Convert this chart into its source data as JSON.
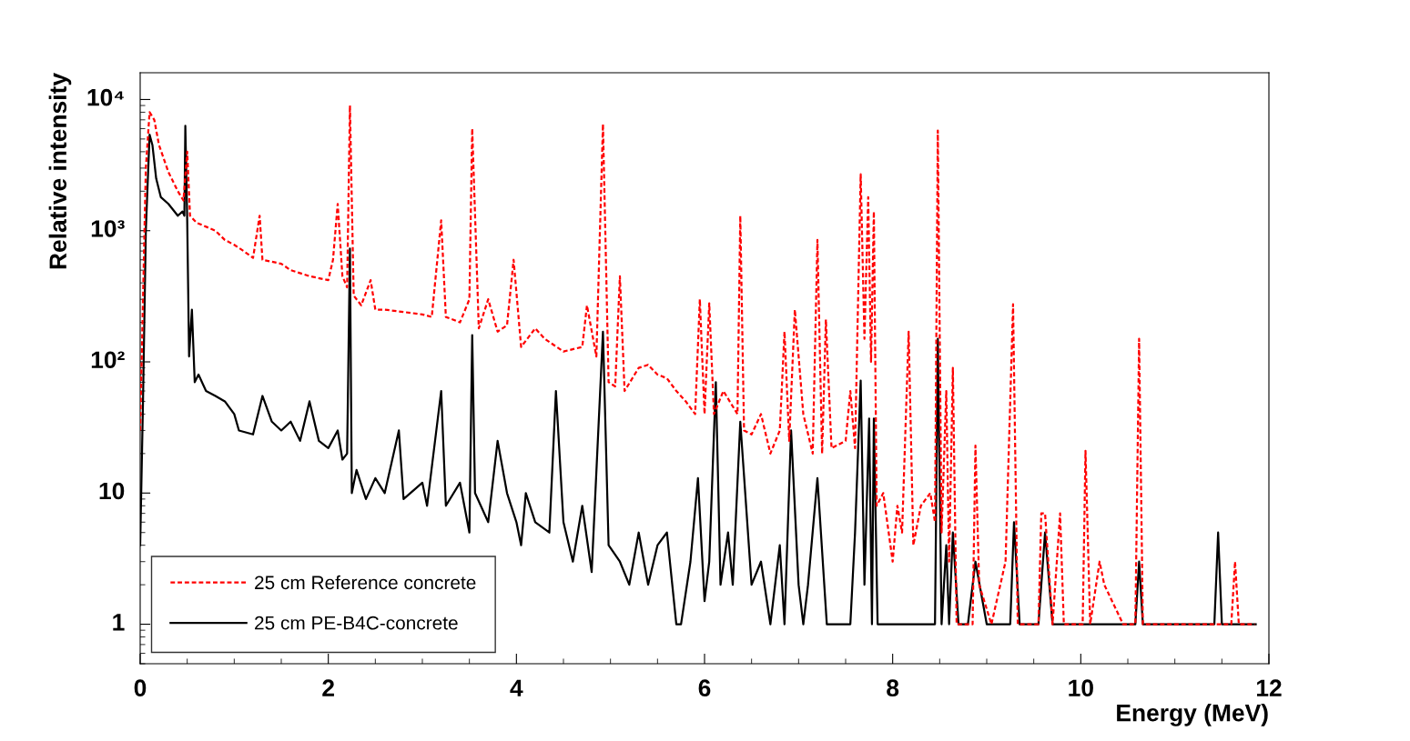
{
  "chart_data": {
    "type": "line",
    "xlabel": "Energy (MeV)",
    "ylabel": "Relative intensity",
    "xlim": [
      0,
      12
    ],
    "xticks": [
      0,
      2,
      4,
      6,
      8,
      10,
      12
    ],
    "ylim": [
      0.5,
      16000
    ],
    "yticks": [
      1,
      10,
      {
        "value": 100,
        "label": "10²"
      },
      {
        "value": 1000,
        "label": "10³"
      },
      {
        "value": 10000,
        "label": "10⁴"
      }
    ],
    "log": "y",
    "legend": "bottom left",
    "series": [
      {
        "name": "25 cm Reference concrete",
        "color": "#ff0000",
        "line_style": "dashed",
        "x": [
          0,
          0.03,
          0.06,
          0.1,
          0.15,
          0.2,
          0.3,
          0.4,
          0.46,
          0.5,
          0.53,
          0.6,
          0.8,
          0.9,
          1.0,
          1.1,
          1.2,
          1.27,
          1.3,
          1.5,
          1.6,
          1.8,
          2.0,
          2.05,
          2.1,
          2.15,
          2.2,
          2.23,
          2.27,
          2.35,
          2.45,
          2.5,
          2.6,
          2.8,
          3.0,
          3.1,
          3.2,
          3.25,
          3.4,
          3.5,
          3.53,
          3.6,
          3.7,
          3.8,
          3.9,
          3.97,
          4.05,
          4.2,
          4.3,
          4.5,
          4.7,
          4.75,
          4.85,
          4.92,
          4.98,
          5.05,
          5.1,
          5.15,
          5.3,
          5.4,
          5.5,
          5.6,
          5.7,
          5.8,
          5.9,
          5.95,
          6.0,
          6.05,
          6.1,
          6.2,
          6.35,
          6.38,
          6.42,
          6.5,
          6.6,
          6.7,
          6.8,
          6.85,
          6.9,
          6.96,
          7.05,
          7.15,
          7.2,
          7.25,
          7.29,
          7.35,
          7.5,
          7.55,
          7.6,
          7.66,
          7.7,
          7.74,
          7.77,
          7.8,
          7.83,
          7.9,
          8.0,
          8.05,
          8.1,
          8.17,
          8.22,
          8.3,
          8.4,
          8.45,
          8.48,
          8.52,
          8.57,
          8.6,
          8.64,
          8.68,
          8.85,
          8.88,
          8.92,
          9.05,
          9.2,
          9.28,
          9.33,
          9.55,
          9.58,
          9.62,
          9.7,
          9.78,
          9.82,
          10.02,
          10.05,
          10.1,
          10.2,
          10.25,
          10.45,
          10.58,
          10.62,
          10.66,
          10.9,
          11.6,
          11.64,
          11.68,
          11.85
        ],
        "values": [
          30,
          300,
          3000,
          8000,
          7000,
          4500,
          2800,
          2000,
          1700,
          4000,
          1300,
          1150,
          1000,
          850,
          780,
          700,
          620,
          1300,
          600,
          560,
          500,
          450,
          420,
          600,
          1600,
          450,
          370,
          9000,
          320,
          270,
          420,
          250,
          250,
          240,
          230,
          220,
          1200,
          220,
          200,
          300,
          6000,
          180,
          300,
          170,
          190,
          600,
          130,
          180,
          150,
          120,
          130,
          270,
          110,
          6500,
          70,
          65,
          450,
          60,
          90,
          95,
          80,
          75,
          60,
          50,
          40,
          300,
          40,
          280,
          40,
          60,
          40,
          1300,
          30,
          28,
          40,
          20,
          30,
          170,
          25,
          250,
          40,
          20,
          850,
          20,
          210,
          22,
          25,
          60,
          22,
          2700,
          150,
          1800,
          100,
          1400,
          8,
          10,
          3,
          8,
          5,
          170,
          4,
          8,
          10,
          6,
          5800,
          5,
          60,
          3,
          90,
          1,
          1,
          23,
          2,
          1,
          3,
          275,
          1,
          1,
          7,
          7,
          1,
          7,
          1,
          1,
          21,
          1,
          3,
          2,
          1,
          1,
          150,
          1,
          1,
          1,
          3,
          1,
          1
        ]
      },
      {
        "name": "25 cm PE-B4C-concrete",
        "color": "#000000",
        "line_style": "solid",
        "x": [
          0,
          0.03,
          0.06,
          0.1,
          0.13,
          0.17,
          0.22,
          0.3,
          0.4,
          0.45,
          0.47,
          0.48,
          0.5,
          0.52,
          0.55,
          0.58,
          0.62,
          0.7,
          0.8,
          0.9,
          1.0,
          1.05,
          1.2,
          1.3,
          1.4,
          1.5,
          1.6,
          1.7,
          1.8,
          1.9,
          2.0,
          2.1,
          2.15,
          2.2,
          2.23,
          2.25,
          2.3,
          2.4,
          2.5,
          2.6,
          2.75,
          2.8,
          3.0,
          3.05,
          3.2,
          3.25,
          3.4,
          3.5,
          3.53,
          3.56,
          3.7,
          3.8,
          3.9,
          4.0,
          4.05,
          4.1,
          4.2,
          4.35,
          4.42,
          4.5,
          4.6,
          4.7,
          4.8,
          4.92,
          4.98,
          5.1,
          5.2,
          5.3,
          5.4,
          5.5,
          5.6,
          5.7,
          5.75,
          5.85,
          5.93,
          6.0,
          6.05,
          6.12,
          6.17,
          6.25,
          6.3,
          6.38,
          6.5,
          6.6,
          6.7,
          6.8,
          6.85,
          6.92,
          7.0,
          7.05,
          7.1,
          7.2,
          7.3,
          7.45,
          7.55,
          7.6,
          7.66,
          7.7,
          7.75,
          7.78,
          7.8,
          7.84,
          8.0,
          8.2,
          8.4,
          8.45,
          8.48,
          8.52,
          8.57,
          8.6,
          8.64,
          8.7,
          8.8,
          8.88,
          9.0,
          9.1,
          9.25,
          9.29,
          9.35,
          9.55,
          9.62,
          9.7,
          9.8,
          9.95,
          10.0,
          10.15,
          10.2,
          10.58,
          10.62,
          10.66,
          11.1,
          11.2,
          11.3,
          11.42,
          11.46,
          11.5,
          11.82,
          11.86
        ],
        "values": [
          4,
          50,
          1000,
          5400,
          4500,
          2500,
          1800,
          1600,
          1300,
          1400,
          1300,
          6300,
          1200,
          110,
          250,
          70,
          80,
          60,
          55,
          50,
          40,
          30,
          28,
          55,
          35,
          30,
          35,
          25,
          50,
          25,
          22,
          30,
          18,
          20,
          730,
          10,
          15,
          9,
          13,
          10,
          30,
          9,
          12,
          8,
          60,
          8,
          12,
          5,
          160,
          10,
          6,
          25,
          10,
          6,
          4,
          10,
          6,
          5,
          60,
          6,
          3,
          8,
          2.5,
          170,
          4,
          3,
          2,
          5,
          2,
          4,
          5,
          1,
          1,
          3,
          13,
          1.5,
          3,
          70,
          2,
          5,
          2,
          35,
          2,
          3,
          1,
          4,
          1,
          30,
          2,
          1,
          2,
          13,
          1,
          1,
          1,
          5,
          72,
          2,
          37,
          1,
          37,
          1,
          1,
          1,
          1,
          1,
          150,
          1,
          4,
          1,
          5,
          1,
          1,
          3,
          1,
          1,
          1,
          6,
          1,
          1,
          5,
          1,
          1,
          1,
          1,
          1,
          1,
          1,
          3,
          1,
          1,
          1,
          1,
          1,
          5,
          1,
          1,
          1
        ]
      }
    ]
  }
}
